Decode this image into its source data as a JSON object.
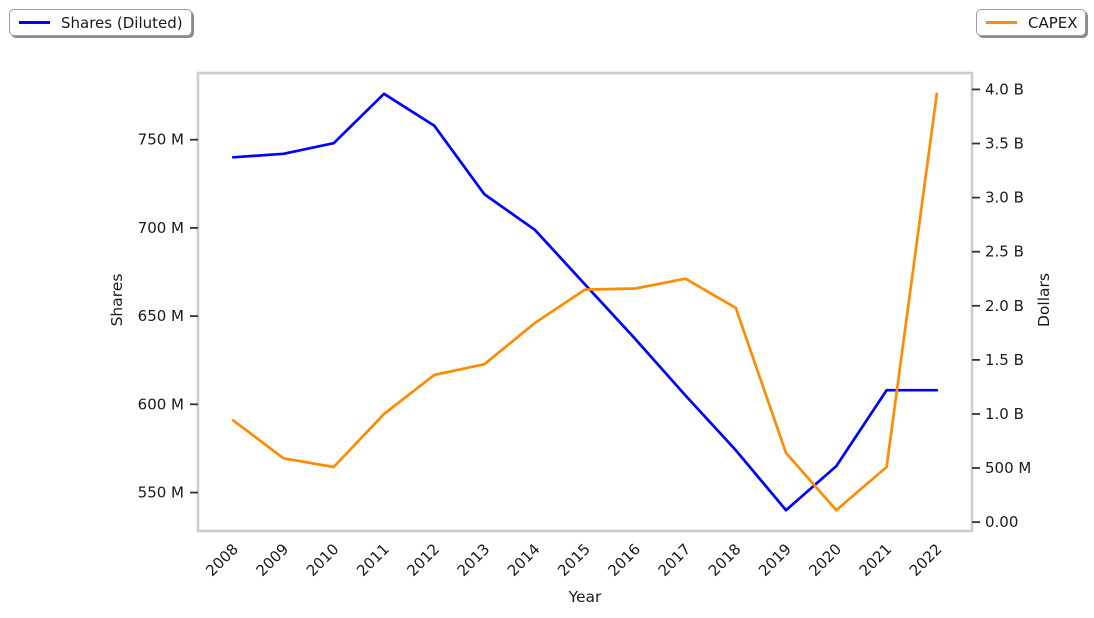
{
  "legend": {
    "shares_label": "Shares (Diluted)",
    "capex_label": "CAPEX"
  },
  "axes": {
    "x": {
      "label": "Year",
      "tick_labels": [
        "2008",
        "2009",
        "2010",
        "2011",
        "2012",
        "2013",
        "2014",
        "2015",
        "2016",
        "2017",
        "2018",
        "2019",
        "2020",
        "2021",
        "2022"
      ]
    },
    "y_left": {
      "label": "Shares",
      "tick_labels": [
        "550 M",
        "600 M",
        "650 M",
        "700 M",
        "750 M"
      ],
      "tick_values_millions": [
        550,
        600,
        650,
        700,
        750
      ]
    },
    "y_right": {
      "label": "Dollars",
      "tick_labels": [
        "0.00",
        "500 M",
        "1.0 B",
        "1.5 B",
        "2.0 B",
        "2.5 B",
        "3.0 B",
        "3.5 B",
        "4.0 B"
      ],
      "tick_values_billions": [
        0,
        0.5,
        1.0,
        1.5,
        2.0,
        2.5,
        3.0,
        3.5,
        4.0
      ]
    }
  },
  "colors": {
    "shares_line": "#0000ff",
    "capex_line": "#ff8c00",
    "spine": "#cccccc",
    "tick_mark": "#333333",
    "text": "#1a1a1a"
  },
  "chart_data": {
    "type": "line",
    "title": "",
    "xlabel": "Year",
    "ylabel_left": "Shares",
    "ylabel_right": "Dollars",
    "x": [
      2008,
      2009,
      2010,
      2011,
      2012,
      2013,
      2014,
      2015,
      2016,
      2017,
      2018,
      2019,
      2020,
      2021,
      2022
    ],
    "series": [
      {
        "name": "Shares (Diluted)",
        "axis": "left",
        "units": "millions of shares",
        "color": "#0000ff",
        "values": [
          740,
          742,
          748,
          776,
          758,
          719,
          699,
          668,
          637,
          605,
          574,
          540,
          565,
          608,
          608
        ]
      },
      {
        "name": "CAPEX",
        "axis": "right",
        "units": "billions of dollars",
        "color": "#ff8c00",
        "values": [
          0.94,
          0.59,
          0.51,
          1.0,
          1.36,
          1.46,
          1.84,
          2.15,
          2.16,
          2.25,
          1.98,
          0.64,
          0.11,
          0.51,
          3.96
        ]
      }
    ],
    "xlim": [
      2007.3,
      2022.7
    ],
    "ylim_left_millions": [
      528.2,
      787.8
    ],
    "ylim_right_billions": [
      -0.082,
      4.152
    ],
    "grid": false,
    "legend_positions": [
      "outside upper left",
      "outside upper right"
    ]
  }
}
